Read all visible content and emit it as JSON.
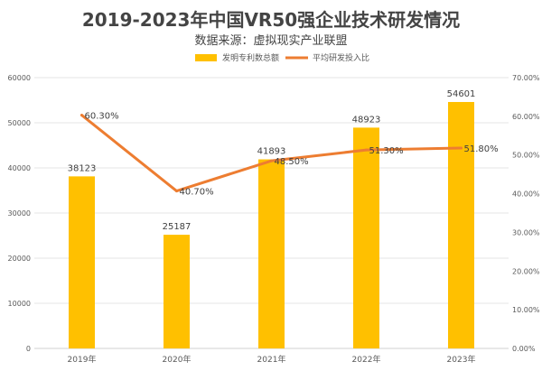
{
  "title": "2019-2023年中国VR50强企业技术研发情况",
  "subtitle": "数据来源：虚拟现实产业联盟",
  "chart_data": {
    "type": "bar",
    "categories": [
      "2019年",
      "2020年",
      "2021年",
      "2022年",
      "2023年"
    ],
    "series": [
      {
        "name": "发明专利数总额",
        "type": "bar",
        "axis": "left",
        "color": "#FFC000",
        "values": [
          38123,
          25187,
          41893,
          48923,
          54601
        ],
        "labels": [
          "38123",
          "25187",
          "41893",
          "48923",
          "54601"
        ]
      },
      {
        "name": "平均研发投入比",
        "type": "line",
        "axis": "right",
        "color": "#ED7D31",
        "values": [
          60.3,
          40.7,
          48.5,
          51.3,
          51.8
        ],
        "labels": [
          "60.30%",
          "40.70%",
          "48.50%",
          "51.30%",
          "51.80%"
        ]
      }
    ],
    "y_left": {
      "min": 0,
      "max": 60000,
      "ticks": [
        "0",
        "10000",
        "20000",
        "30000",
        "40000",
        "50000",
        "60000"
      ]
    },
    "y_right": {
      "min": 0,
      "max": 70,
      "ticks": [
        "0.00%",
        "10.00%",
        "20.00%",
        "30.00%",
        "40.00%",
        "50.00%",
        "60.00%",
        "70.00%"
      ]
    },
    "legend": {
      "position": "top"
    },
    "grid": true
  }
}
